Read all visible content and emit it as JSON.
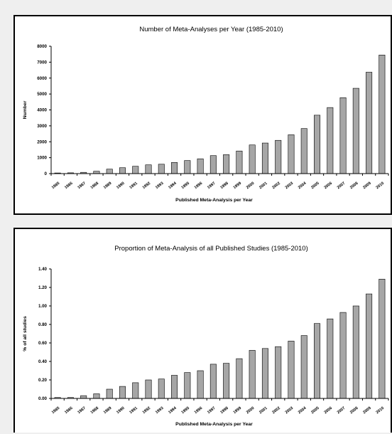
{
  "chart_data": [
    {
      "type": "bar",
      "title": "Number of Meta-Analyses per Year (1985-2010)",
      "xlabel": "Published Meta-Analysis per Year",
      "ylabel": "Number",
      "ylim": [
        0,
        8000
      ],
      "yticks": [
        "0",
        "1000",
        "2000",
        "3000",
        "4000",
        "5000",
        "6000",
        "7000",
        "8000"
      ],
      "categories": [
        "1985",
        "1986",
        "1987",
        "1988",
        "1989",
        "1990",
        "1991",
        "1992",
        "1993",
        "1994",
        "1995",
        "1996",
        "1997",
        "1998",
        "1999",
        "2000",
        "2001",
        "2002",
        "2003",
        "2004",
        "2005",
        "2006",
        "2007",
        "2008",
        "2009",
        "2010"
      ],
      "values": [
        40,
        50,
        80,
        150,
        280,
        370,
        460,
        550,
        590,
        700,
        820,
        930,
        1130,
        1190,
        1420,
        1800,
        1920,
        2090,
        2440,
        2830,
        3670,
        4150,
        4770,
        5360,
        6370,
        7450
      ],
      "bar_color": "#a6a6a6",
      "grid": false
    },
    {
      "type": "bar",
      "title": "Proportion of Meta-Analysis of all Published Studies (1985-2010)",
      "xlabel": "Published Meta-Analysis per Year",
      "ylabel": "% of all studies",
      "ylim": [
        0,
        1.4
      ],
      "yticks": [
        "0.00",
        "0.20",
        "0.40",
        "0.60",
        "0.80",
        "1.00",
        "1.20",
        "1.40"
      ],
      "categories": [
        "1985",
        "1986",
        "1987",
        "1988",
        "1989",
        "1990",
        "1991",
        "1992",
        "1993",
        "1994",
        "1995",
        "1996",
        "1997",
        "1998",
        "1999",
        "2000",
        "2001",
        "2002",
        "2003",
        "2004",
        "2005",
        "2006",
        "2007",
        "2008",
        "2009",
        "2010"
      ],
      "values": [
        0.01,
        0.01,
        0.03,
        0.05,
        0.1,
        0.13,
        0.17,
        0.2,
        0.21,
        0.25,
        0.28,
        0.3,
        0.37,
        0.38,
        0.43,
        0.52,
        0.54,
        0.56,
        0.62,
        0.68,
        0.81,
        0.86,
        0.93,
        1.0,
        1.13,
        1.29
      ],
      "bar_color": "#a6a6a6",
      "grid": false
    }
  ]
}
